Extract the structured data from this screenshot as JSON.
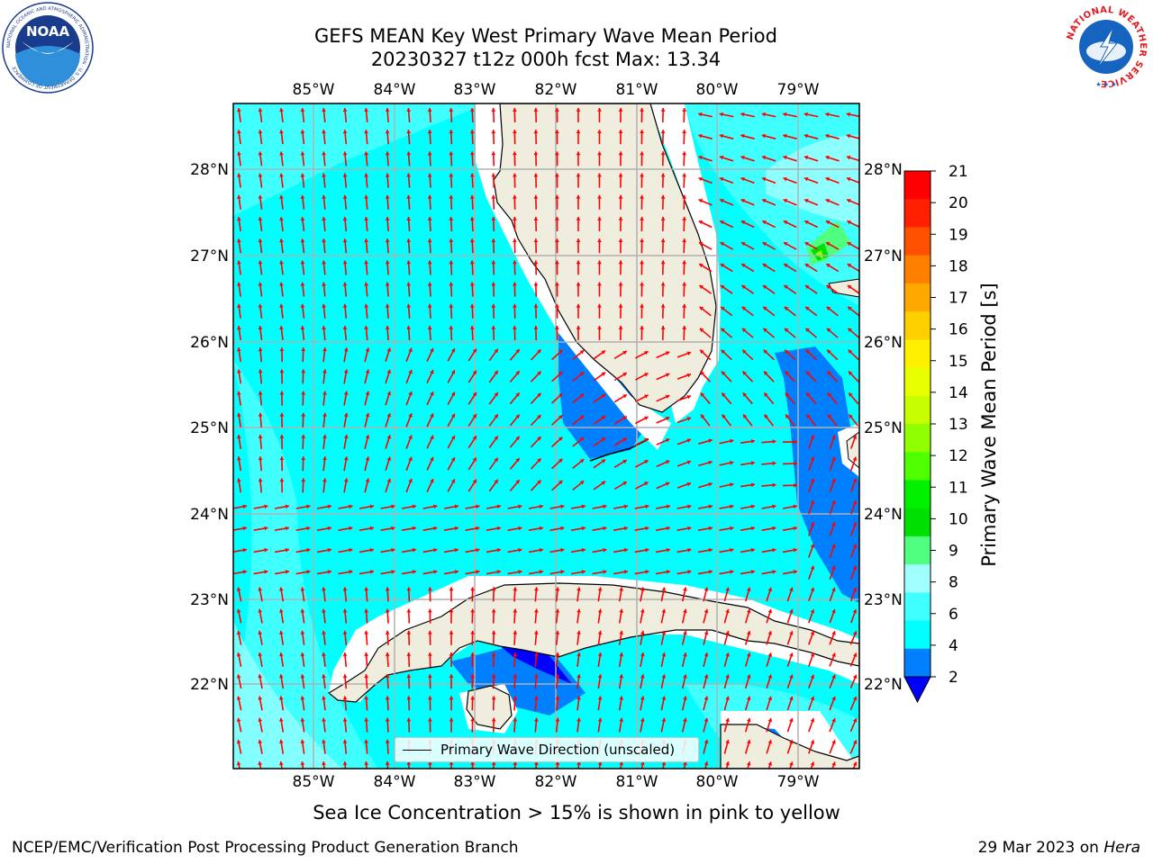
{
  "header": {
    "title_line1": "GEFS MEAN Key West Primary Wave Mean Period",
    "title_line2": "20230327 t12z 000h fcst   Max: 13.34"
  },
  "logos": {
    "noaa": {
      "text": "NOAA",
      "ring_text": "NATIONAL OCEANIC AND ATMOSPHERIC ADMINISTRATION · U.S. DEPARTMENT OF COMMERCE"
    },
    "nws": {
      "ring_text": "NATIONAL WEATHER SERVICE"
    }
  },
  "map": {
    "lon_labels": [
      "85°W",
      "84°W",
      "83°W",
      "82°W",
      "81°W",
      "80°W",
      "79°W"
    ],
    "lat_labels": [
      "28°N",
      "27°N",
      "26°N",
      "25°N",
      "24°N",
      "23°N",
      "22°N"
    ],
    "legend_label": "Primary Wave Direction (unscaled)",
    "colors": {
      "land": "#efedde",
      "water_main": "#00ffff",
      "water_light": "#40ffff",
      "water_pale": "#a0ffff",
      "low_period": "#0080ff",
      "very_low": "#0000ff",
      "arrow": "#ff0000"
    }
  },
  "colorbar": {
    "title": "Primary Wave Mean Period [s]",
    "ticks": [
      "21",
      "20",
      "19",
      "18",
      "17",
      "16",
      "15",
      "14",
      "13",
      "12",
      "11",
      "10",
      "9",
      "8",
      "6",
      "4",
      "2"
    ],
    "colors": [
      "#ff0000",
      "#ff2000",
      "#ff5000",
      "#ff8000",
      "#ffa800",
      "#ffd000",
      "#fff000",
      "#e8ff00",
      "#c8ff00",
      "#90ff00",
      "#50ff00",
      "#00f000",
      "#00e000",
      "#50ff80",
      "#a0ffff",
      "#40ffff",
      "#00ffff",
      "#0080ff"
    ],
    "extend_color": "#0000ff"
  },
  "notes": {
    "ice": "Sea Ice Concentration > 15% is shown in pink to yellow",
    "footer_left": "NCEP/EMC/Verification Post Processing Product Generation Branch",
    "footer_date": "29 Mar 2023 on",
    "footer_host": "Hera"
  }
}
